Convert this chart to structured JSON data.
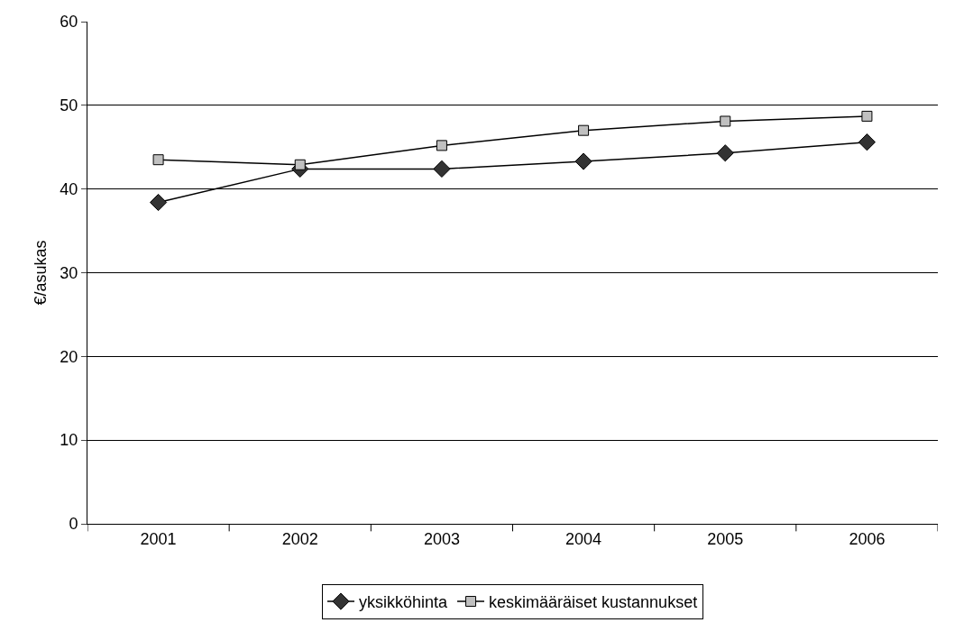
{
  "chart_data": {
    "type": "line",
    "ylabel": "€/asukas",
    "categories": [
      "2001",
      "2002",
      "2003",
      "2004",
      "2005",
      "2006"
    ],
    "series": [
      {
        "name": "yksikköhinta",
        "color": "#333333",
        "marker": "diamond",
        "values": [
          38.4,
          42.4,
          42.4,
          43.3,
          44.3,
          45.6
        ]
      },
      {
        "name": "keskimääräiset kustannukset",
        "color": "#c0c0c0",
        "marker": "square",
        "values": [
          43.5,
          42.9,
          45.2,
          47.0,
          48.1,
          48.7
        ]
      }
    ],
    "ylim": [
      0,
      60
    ],
    "yticks": [
      0,
      10,
      20,
      30,
      40,
      50,
      60
    ],
    "grid": "y",
    "legend": "bottom"
  }
}
